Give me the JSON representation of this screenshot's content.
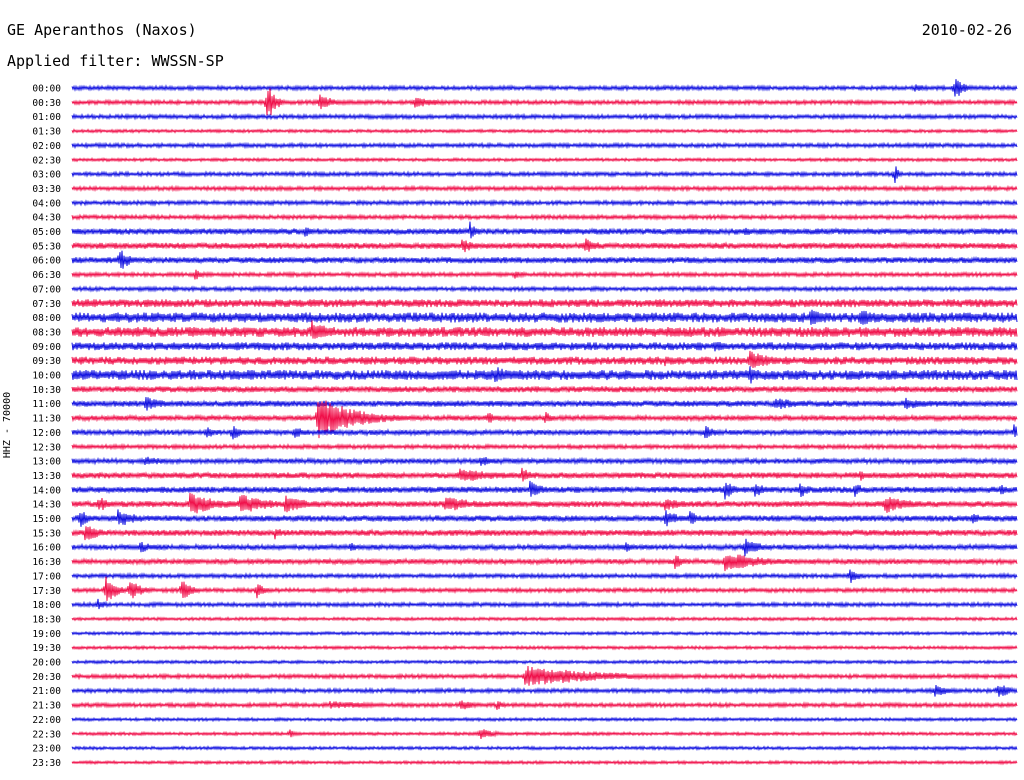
{
  "header": {
    "station": "GE Aperanthos (Naxos)",
    "date": "2010-02-26",
    "filter": "Applied filter: WWSSN-SP"
  },
  "chart_data": {
    "type": "line",
    "title": "GE Aperanthos (Naxos)",
    "ylabel": "HHZ - 70000",
    "colors": {
      "even": "#1010e0",
      "odd": "#f0104a"
    },
    "rows": [
      "00:00",
      "00:30",
      "01:00",
      "01:30",
      "02:00",
      "02:30",
      "03:00",
      "03:30",
      "04:00",
      "04:30",
      "05:00",
      "05:30",
      "06:00",
      "06:30",
      "07:00",
      "07:30",
      "08:00",
      "08:30",
      "09:00",
      "09:30",
      "10:00",
      "10:30",
      "11:00",
      "11:30",
      "12:00",
      "12:30",
      "13:00",
      "13:30",
      "14:00",
      "14:30",
      "15:00",
      "15:30",
      "16:00",
      "16:30",
      "17:00",
      "17:30",
      "18:00",
      "18:30",
      "19:00",
      "19:30",
      "20:00",
      "20:30",
      "21:00",
      "21:30",
      "22:00",
      "22:30",
      "23:00",
      "23:30"
    ],
    "noise": [
      2,
      2,
      2,
      1.5,
      2,
      1.5,
      2,
      2,
      2,
      2,
      3,
      3,
      3,
      2,
      2,
      4,
      5,
      5,
      4,
      4,
      5,
      3,
      3,
      2.5,
      2.5,
      2,
      2.5,
      3,
      3,
      3,
      3,
      3,
      2.5,
      2.5,
      2,
      2,
      2,
      1.5,
      1.5,
      1.5,
      1.5,
      2,
      2,
      2,
      1.5,
      1.5,
      1.5,
      1.5
    ],
    "events": [
      {
        "row": 0,
        "x": 955,
        "amp": 12,
        "dur": 10
      },
      {
        "row": 0,
        "x": 915,
        "amp": 4,
        "dur": 20
      },
      {
        "row": 1,
        "x": 267,
        "amp": 22,
        "dur": 8
      },
      {
        "row": 1,
        "x": 320,
        "amp": 10,
        "dur": 12
      },
      {
        "row": 1,
        "x": 415,
        "amp": 6,
        "dur": 25
      },
      {
        "row": 6,
        "x": 895,
        "amp": 10,
        "dur": 4
      },
      {
        "row": 10,
        "x": 305,
        "amp": 6,
        "dur": 10
      },
      {
        "row": 10,
        "x": 470,
        "amp": 10,
        "dur": 6
      },
      {
        "row": 10,
        "x": 745,
        "amp": 6,
        "dur": 8
      },
      {
        "row": 11,
        "x": 462,
        "amp": 8,
        "dur": 14
      },
      {
        "row": 11,
        "x": 585,
        "amp": 8,
        "dur": 15
      },
      {
        "row": 12,
        "x": 120,
        "amp": 12,
        "dur": 10
      },
      {
        "row": 13,
        "x": 195,
        "amp": 6,
        "dur": 8
      },
      {
        "row": 13,
        "x": 515,
        "amp": 5,
        "dur": 10
      },
      {
        "row": 16,
        "x": 810,
        "amp": 10,
        "dur": 15
      },
      {
        "row": 16,
        "x": 860,
        "amp": 8,
        "dur": 30
      },
      {
        "row": 17,
        "x": 312,
        "amp": 12,
        "dur": 20
      },
      {
        "row": 18,
        "x": 715,
        "amp": 6,
        "dur": 15
      },
      {
        "row": 19,
        "x": 750,
        "amp": 12,
        "dur": 20
      },
      {
        "row": 19,
        "x": 665,
        "amp": 6,
        "dur": 20
      },
      {
        "row": 20,
        "x": 495,
        "amp": 9,
        "dur": 20
      },
      {
        "row": 20,
        "x": 750,
        "amp": 10,
        "dur": 12
      },
      {
        "row": 22,
        "x": 145,
        "amp": 8,
        "dur": 20
      },
      {
        "row": 22,
        "x": 775,
        "amp": 7,
        "dur": 25
      },
      {
        "row": 22,
        "x": 905,
        "amp": 6,
        "dur": 25
      },
      {
        "row": 23,
        "x": 318,
        "amp": 22,
        "dur": 40
      },
      {
        "row": 23,
        "x": 488,
        "amp": 8,
        "dur": 10
      },
      {
        "row": 23,
        "x": 545,
        "amp": 7,
        "dur": 8
      },
      {
        "row": 24,
        "x": 233,
        "amp": 10,
        "dur": 8
      },
      {
        "row": 24,
        "x": 295,
        "amp": 8,
        "dur": 8
      },
      {
        "row": 24,
        "x": 207,
        "amp": 8,
        "dur": 6
      },
      {
        "row": 24,
        "x": 705,
        "amp": 9,
        "dur": 10
      },
      {
        "row": 24,
        "x": 1014,
        "amp": 10,
        "dur": 6
      },
      {
        "row": 26,
        "x": 145,
        "amp": 5,
        "dur": 25
      },
      {
        "row": 26,
        "x": 480,
        "amp": 6,
        "dur": 15
      },
      {
        "row": 27,
        "x": 460,
        "amp": 8,
        "dur": 40
      },
      {
        "row": 27,
        "x": 522,
        "amp": 9,
        "dur": 10
      },
      {
        "row": 27,
        "x": 860,
        "amp": 6,
        "dur": 8
      },
      {
        "row": 28,
        "x": 530,
        "amp": 10,
        "dur": 15
      },
      {
        "row": 28,
        "x": 725,
        "amp": 10,
        "dur": 10
      },
      {
        "row": 28,
        "x": 755,
        "amp": 9,
        "dur": 10
      },
      {
        "row": 28,
        "x": 800,
        "amp": 9,
        "dur": 10
      },
      {
        "row": 28,
        "x": 855,
        "amp": 9,
        "dur": 8
      },
      {
        "row": 28,
        "x": 1000,
        "amp": 7,
        "dur": 8
      },
      {
        "row": 29,
        "x": 190,
        "amp": 12,
        "dur": 30
      },
      {
        "row": 29,
        "x": 240,
        "amp": 11,
        "dur": 30
      },
      {
        "row": 29,
        "x": 285,
        "amp": 9,
        "dur": 25
      },
      {
        "row": 29,
        "x": 445,
        "amp": 9,
        "dur": 30
      },
      {
        "row": 29,
        "x": 665,
        "amp": 7,
        "dur": 20
      },
      {
        "row": 29,
        "x": 885,
        "amp": 10,
        "dur": 25
      },
      {
        "row": 29,
        "x": 98,
        "amp": 8,
        "dur": 15
      },
      {
        "row": 30,
        "x": 80,
        "amp": 10,
        "dur": 10
      },
      {
        "row": 30,
        "x": 118,
        "amp": 10,
        "dur": 20
      },
      {
        "row": 30,
        "x": 665,
        "amp": 9,
        "dur": 15
      },
      {
        "row": 30,
        "x": 690,
        "amp": 8,
        "dur": 10
      },
      {
        "row": 30,
        "x": 973,
        "amp": 9,
        "dur": 6
      },
      {
        "row": 31,
        "x": 85,
        "amp": 10,
        "dur": 15
      },
      {
        "row": 31,
        "x": 275,
        "amp": 7,
        "dur": 8
      },
      {
        "row": 32,
        "x": 140,
        "amp": 6,
        "dur": 15
      },
      {
        "row": 32,
        "x": 350,
        "amp": 6,
        "dur": 10
      },
      {
        "row": 32,
        "x": 625,
        "amp": 6,
        "dur": 8
      },
      {
        "row": 32,
        "x": 745,
        "amp": 10,
        "dur": 15
      },
      {
        "row": 33,
        "x": 675,
        "amp": 8,
        "dur": 10
      },
      {
        "row": 33,
        "x": 725,
        "amp": 10,
        "dur": 40
      },
      {
        "row": 34,
        "x": 850,
        "amp": 9,
        "dur": 10
      },
      {
        "row": 35,
        "x": 106,
        "amp": 14,
        "dur": 12
      },
      {
        "row": 35,
        "x": 130,
        "amp": 11,
        "dur": 12
      },
      {
        "row": 35,
        "x": 182,
        "amp": 12,
        "dur": 10
      },
      {
        "row": 35,
        "x": 257,
        "amp": 8,
        "dur": 8
      },
      {
        "row": 36,
        "x": 98,
        "amp": 6,
        "dur": 8
      },
      {
        "row": 41,
        "x": 525,
        "amp": 11,
        "dur": 80
      },
      {
        "row": 42,
        "x": 935,
        "amp": 7,
        "dur": 15
      },
      {
        "row": 42,
        "x": 998,
        "amp": 9,
        "dur": 12
      },
      {
        "row": 43,
        "x": 330,
        "amp": 4,
        "dur": 60
      },
      {
        "row": 43,
        "x": 460,
        "amp": 6,
        "dur": 15
      },
      {
        "row": 43,
        "x": 497,
        "amp": 6,
        "dur": 6
      },
      {
        "row": 45,
        "x": 290,
        "amp": 5,
        "dur": 6
      },
      {
        "row": 45,
        "x": 480,
        "amp": 6,
        "dur": 15
      }
    ]
  }
}
